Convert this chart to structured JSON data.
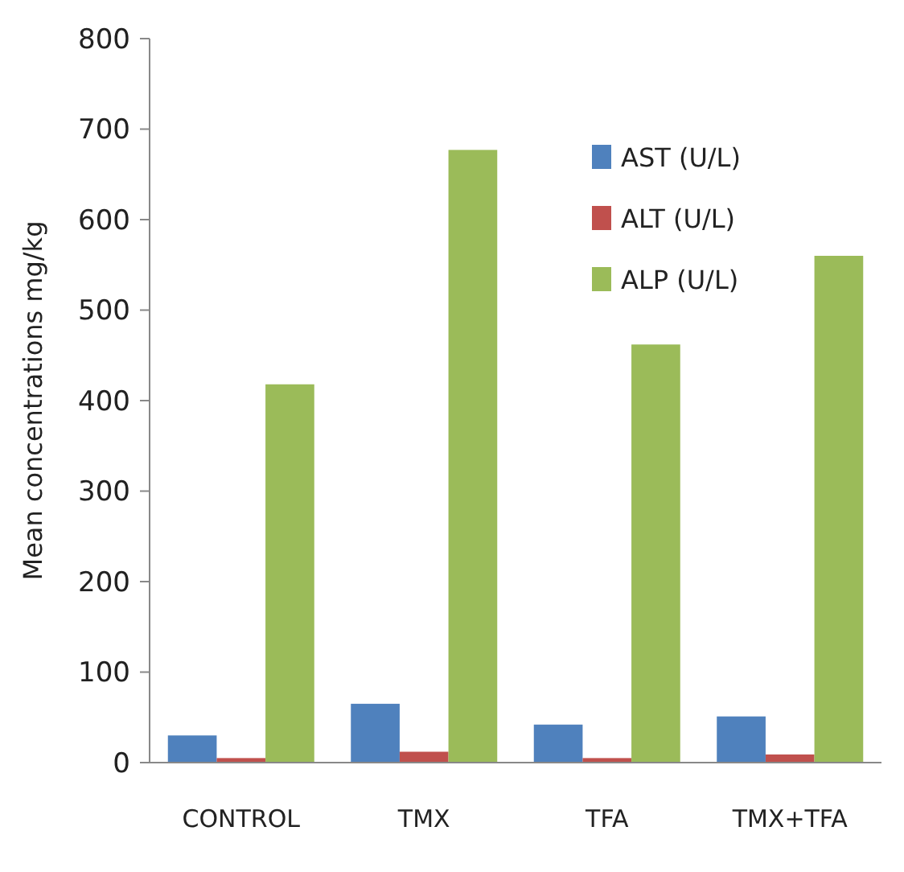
{
  "chart_data": {
    "type": "bar",
    "ylabel": "Mean concentrations mg/kg",
    "categories": [
      "CONTROL",
      "TMX",
      "TFA",
      "TMX+TFA"
    ],
    "series": [
      {
        "name": "AST (U/L)",
        "color": "#4f81bd",
        "values": [
          30,
          65,
          42,
          51
        ]
      },
      {
        "name": "ALT (U/L)",
        "color": "#c0504d",
        "values": [
          5,
          12,
          5,
          9
        ]
      },
      {
        "name": "ALP (U/L)",
        "color": "#9bbb59",
        "values": [
          418,
          677,
          462,
          560
        ]
      }
    ],
    "ylim": [
      0,
      800
    ],
    "yticks": [
      0,
      100,
      200,
      300,
      400,
      500,
      600,
      700,
      800
    ],
    "grid": false,
    "legend": "top right"
  }
}
